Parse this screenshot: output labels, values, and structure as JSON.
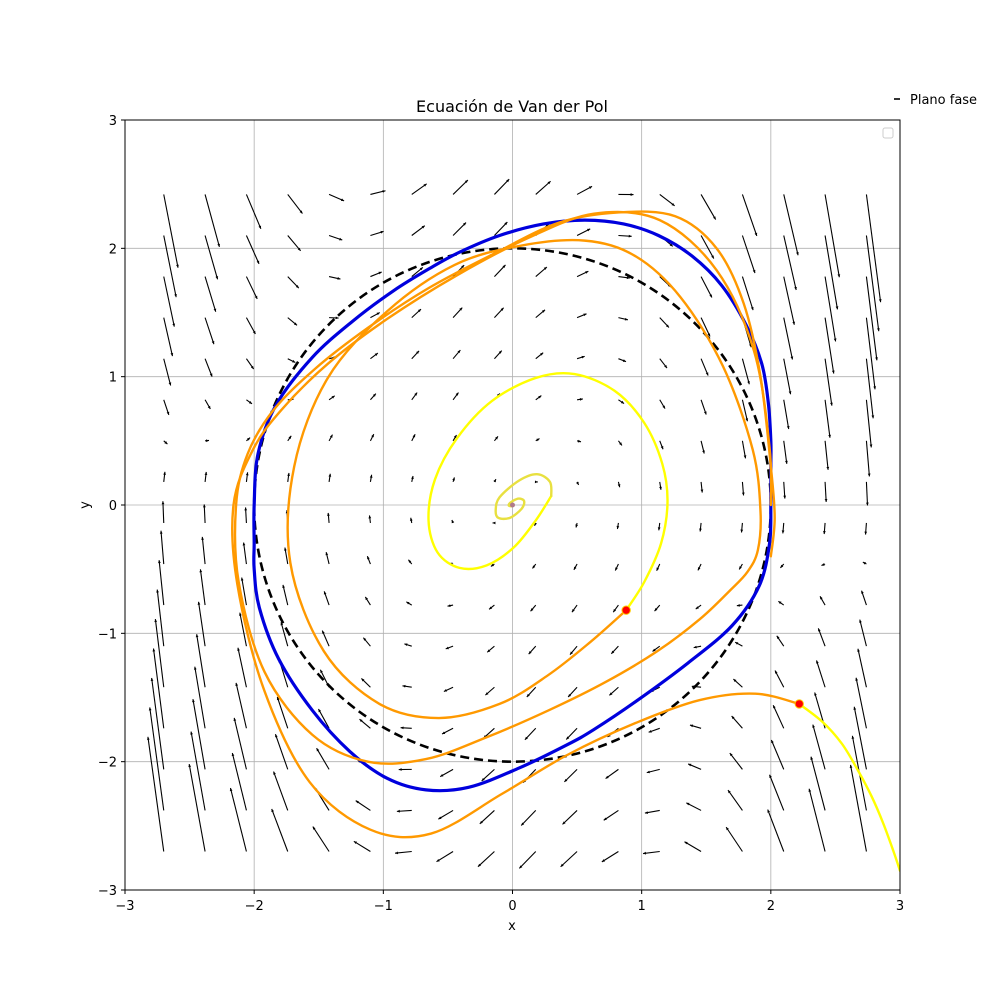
{
  "chart_data": {
    "type": "line",
    "title": "Ecuación de Van der Pol",
    "xlabel": "x",
    "ylabel": "y",
    "xlim": [
      -3,
      3
    ],
    "ylim": [
      -3,
      3
    ],
    "grid": true,
    "legend": {
      "placement": "upper right, outside the axes",
      "entries": [
        "Plano fase"
      ]
    },
    "xticks": [
      "−3",
      "−2",
      "−1",
      "0",
      "1",
      "2",
      "3"
    ],
    "yticks": [
      "−3",
      "−2",
      "−1",
      "0",
      "1",
      "2",
      "3"
    ],
    "equation": {
      "mu": 1
    },
    "vector_field": {
      "x_range": [
        -2.7,
        3.0
      ],
      "y_range": [
        -2.7,
        2.7
      ],
      "step": 0.32,
      "color": "#000000"
    },
    "reference_circle": {
      "radius": 2,
      "color": "#000000",
      "style": "dashed"
    },
    "series": [
      {
        "color": "#0000dd",
        "x": [
          2.0,
          2.0,
          2.0,
          1.98,
          1.93,
          1.81,
          1.62,
          1.39,
          1.13,
          0.86,
          0.56,
          0.24,
          -0.1,
          -0.41,
          -0.63,
          -0.92,
          -1.24,
          -1.55,
          -1.83,
          -1.97,
          -2.0,
          -2.0,
          -2.0,
          -1.96,
          -1.81,
          -1.55,
          -1.26,
          -0.97,
          -0.67,
          -0.34,
          0.05,
          0.42,
          0.63,
          0.97,
          1.36,
          1.7,
          1.91,
          1.99,
          2.0
        ],
        "y": [
          0.0,
          0.3,
          0.5,
          0.8,
          1.1,
          1.4,
          1.71,
          1.94,
          2.1,
          2.19,
          2.22,
          2.19,
          2.1,
          1.97,
          1.85,
          1.67,
          1.43,
          1.15,
          0.78,
          0.4,
          0.0,
          -0.3,
          -0.5,
          -0.8,
          -1.2,
          -1.6,
          -1.92,
          -2.13,
          -2.22,
          -2.2,
          -2.05,
          -1.87,
          -1.75,
          -1.52,
          -1.23,
          -0.94,
          -0.63,
          -0.3,
          0.0
        ]
      },
      {
        "color": "#ff9900",
        "x": [
          0.88,
          0.6,
          0.27,
          -0.1,
          -0.57,
          -1.03,
          -1.46,
          -1.72,
          -1.69,
          -1.43,
          -0.97,
          -0.45,
          0.06,
          0.56,
          0.95,
          1.3,
          1.63,
          1.86,
          1.92,
          1.9,
          1.82,
          1.68,
          1.45,
          1.12,
          0.72,
          0.28,
          -0.2,
          -0.67,
          -1.12,
          -1.55,
          -1.92,
          -2.12,
          -2.14,
          -2.05,
          -1.85,
          -1.53,
          -1.12,
          -0.65,
          -0.14,
          0.36,
          0.82,
          1.26,
          1.58,
          1.79,
          1.92,
          2.0,
          2.03,
          2.0
        ],
        "y": [
          -0.82,
          -1.07,
          -1.33,
          -1.55,
          -1.66,
          -1.55,
          -1.14,
          -0.45,
          0.3,
          0.99,
          1.51,
          1.87,
          2.02,
          2.06,
          1.94,
          1.62,
          1.08,
          0.43,
          -0.05,
          -0.35,
          -0.52,
          -0.67,
          -0.89,
          -1.14,
          -1.38,
          -1.6,
          -1.81,
          -1.98,
          -2.0,
          -1.79,
          -1.3,
          -0.6,
          0.0,
          0.4,
          0.74,
          1.06,
          1.38,
          1.69,
          1.96,
          2.2,
          2.28,
          2.25,
          2.0,
          1.57,
          1.0,
          0.3,
          -0.1,
          -0.4
        ]
      },
      {
        "color": "#ff9900",
        "x": [
          2.22,
          1.88,
          1.45,
          0.95,
          0.42,
          -0.08,
          -0.63,
          -1.1,
          -1.57,
          -1.92,
          -2.13,
          -2.16,
          -2.01,
          -1.79,
          -1.43,
          -0.97,
          -0.43,
          0.12,
          0.63,
          1.14,
          1.58,
          1.87,
          1.99,
          2.0
        ],
        "y": [
          -1.55,
          -1.47,
          -1.52,
          -1.7,
          -1.95,
          -2.25,
          -2.56,
          -2.53,
          -2.16,
          -1.45,
          -0.62,
          0.0,
          0.43,
          0.74,
          1.1,
          1.45,
          1.79,
          2.08,
          2.27,
          2.22,
          1.83,
          1.2,
          0.45,
          0.0
        ]
      },
      {
        "color": "#ffff00",
        "x": [
          0.88,
          1.02,
          1.15,
          1.2,
          1.16,
          1.02,
          0.79,
          0.48,
          0.18,
          -0.16,
          -0.43,
          -0.6,
          -0.65,
          -0.58,
          -0.41,
          -0.2,
          0.01,
          0.18,
          0.3
        ],
        "y": [
          -0.82,
          -0.6,
          -0.3,
          0.02,
          0.32,
          0.64,
          0.89,
          1.02,
          0.99,
          0.81,
          0.52,
          0.2,
          -0.12,
          -0.37,
          -0.49,
          -0.47,
          -0.33,
          -0.12,
          0.07
        ]
      },
      {
        "color": "#e8e040",
        "x": [
          0.3,
          0.29,
          0.19,
          0.05,
          -0.1,
          -0.13,
          -0.11,
          -0.02,
          0.07,
          0.09,
          0.05,
          0.0,
          -0.03,
          -0.01,
          0.0
        ],
        "y": [
          0.07,
          0.18,
          0.24,
          0.19,
          0.06,
          -0.04,
          -0.1,
          -0.1,
          -0.03,
          0.03,
          0.05,
          0.03,
          0.0,
          -0.01,
          0.0
        ]
      },
      {
        "color": "#ffff00",
        "x": [
          2.22,
          2.4,
          2.55,
          2.67,
          2.78,
          2.87,
          2.95,
          3.0
        ],
        "y": [
          -1.55,
          -1.69,
          -1.86,
          -2.06,
          -2.27,
          -2.48,
          -2.7,
          -2.85
        ]
      }
    ],
    "initial_points": {
      "color": "#ff0000",
      "x": [
        0.88,
        2.22
      ],
      "y": [
        -0.82,
        -1.55
      ]
    }
  }
}
